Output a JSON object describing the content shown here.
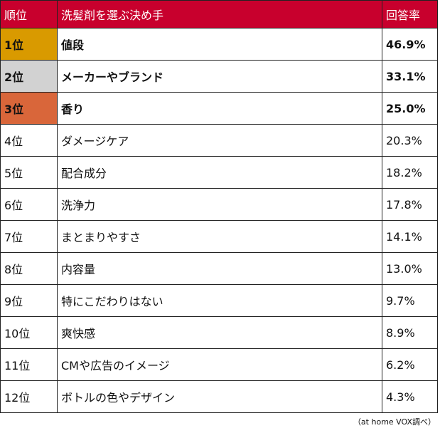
{
  "chart_data": {
    "type": "table",
    "headers": [
      "順位",
      "洗髪剤を選ぶ決め手",
      "回答率"
    ],
    "rows": [
      {
        "rank": "1位",
        "item": "値段",
        "rate": "46.9%",
        "color": "#d99a00",
        "bold": true
      },
      {
        "rank": "2位",
        "item": "メーカーやブランド",
        "rate": "33.1%",
        "color": "#d2d2d2",
        "bold": true
      },
      {
        "rank": "3位",
        "item": "香り",
        "rate": "25.0%",
        "color": "#d9663a",
        "bold": true
      },
      {
        "rank": "4位",
        "item": "ダメージケア",
        "rate": "20.3%"
      },
      {
        "rank": "5位",
        "item": "配合成分",
        "rate": "18.2%"
      },
      {
        "rank": "6位",
        "item": "洗浄力",
        "rate": "17.8%"
      },
      {
        "rank": "7位",
        "item": "まとまりやすさ",
        "rate": "14.1%"
      },
      {
        "rank": "8位",
        "item": "内容量",
        "rate": "13.0%"
      },
      {
        "rank": "9位",
        "item": "特にこだわりはない",
        "rate": "9.7%"
      },
      {
        "rank": "10位",
        "item": "爽快感",
        "rate": "8.9%"
      },
      {
        "rank": "11位",
        "item": "CMや広告のイメージ",
        "rate": "6.2%"
      },
      {
        "rank": "12位",
        "item": "ボトルの色やデザイン",
        "rate": "4.3%"
      }
    ],
    "values": [
      46.9,
      33.1,
      25.0,
      20.3,
      18.2,
      17.8,
      14.1,
      13.0,
      9.7,
      8.9,
      6.2,
      4.3
    ]
  },
  "header_color": "#c8002d",
  "source": "（at home VOX調べ）"
}
